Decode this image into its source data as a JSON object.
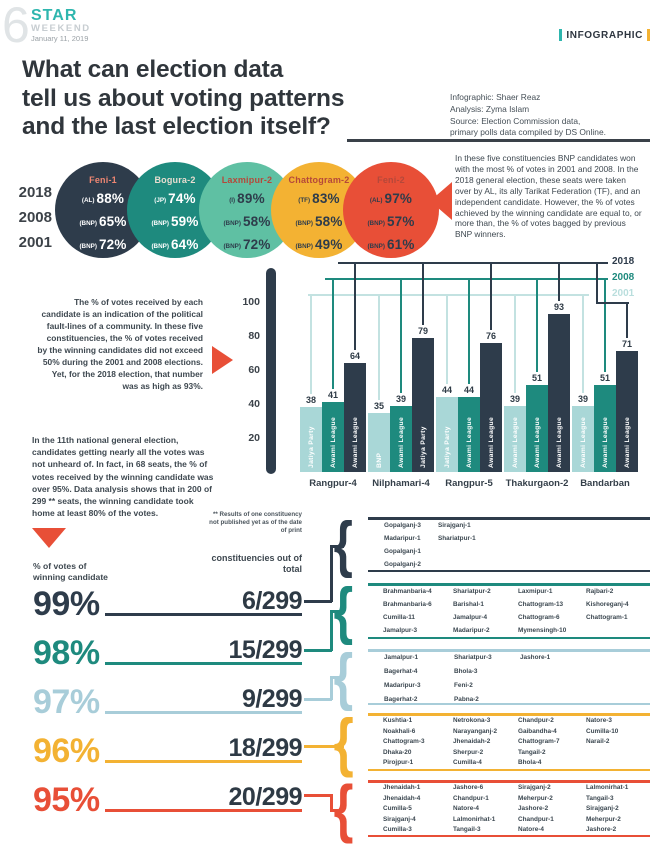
{
  "masthead": {
    "issue_number": "6",
    "brand": "STAR",
    "brand_sub": "WEEKEND",
    "date": "January 11, 2019",
    "section_tag": "INFOGRAPHIC"
  },
  "title": {
    "lines": [
      "What can election data",
      "tell us about voting patterns",
      "and the last election itself?"
    ]
  },
  "credits": {
    "lines": [
      "Infographic: Shaer Reaz",
      "Analysis: Zyma Islam",
      "Source: Election Commission data,",
      "primary polls data compiled by DS Online."
    ]
  },
  "colors": {
    "navy": "#2e3c4b",
    "teal": "#1e8a7e",
    "mint": "#5fc0a3",
    "amber": "#f3b233",
    "red": "#e84f37",
    "light_bar": "#a9d7d7",
    "light_line": "#c3e2e1",
    "light_blue": "#a8cdd9",
    "text_dark": "#3b454e"
  },
  "constituency_circles": {
    "year_labels": [
      "2018",
      "2008",
      "2001"
    ],
    "note": "In these five constituencies BNP candidates won with the most % of votes in 2001 and 2008. In the 2018 general election, these seats were taken over by AL, its ally Tarikat Federation (TF), and an independent candidate. However, the % of votes achieved by the winning candidate are equal to, or more than, the % of votes bagged by previous BNP winners."
  },
  "notes": {
    "fault_lines": "The % of votes received by each candidate is an indication of the political fault-lines of a community. In these five constituencies, the % of votes received by the winning candidates did not exceed 50% during the 2001 and 2008 elections. Yet, for the 2018 election, that number was as high as 93%.",
    "eleventh_election": "In the 11th national general election, candidates getting nearly all the votes was not unheard of. In fact, in 68 seats, the % of votes received by the winning candidate was over 95%.  Data analysis shows that in 200 of 299 ** seats, the winning candidate took home at least 80% of the votes."
  },
  "chart_data": [
    {
      "type": "table",
      "title": "Winning % of votes in five constituencies taken over from BNP",
      "columns": [
        "Feni-1",
        "Bogura-2",
        "Laxmipur-2",
        "Chattogram-2",
        "Feni-2"
      ],
      "column_colors": [
        "#2e3c4b",
        "#1e8a7e",
        "#5fc0a3",
        "#f3b233",
        "#e84f37"
      ],
      "text_colors": [
        "#ffffff",
        "#ffffff",
        "#2e3c4b",
        "#2e3c4b",
        "#2e3c4b"
      ],
      "title_colors": [
        "#ee8672",
        "#e9ddd0",
        "#b5483a",
        "#b5483a",
        "#b5483a"
      ],
      "rows": [
        {
          "year": "2018",
          "cells": [
            {
              "party": "(AL)",
              "value": "88%"
            },
            {
              "party": "(JP)",
              "value": "74%"
            },
            {
              "party": "(I)",
              "value": "89%"
            },
            {
              "party": "(TF)",
              "value": "83%"
            },
            {
              "party": "(AL)",
              "value": "97%"
            }
          ]
        },
        {
          "year": "2008",
          "cells": [
            {
              "party": "(BNP)",
              "value": "65%"
            },
            {
              "party": "(BNP)",
              "value": "59%"
            },
            {
              "party": "(BNP)",
              "value": "58%"
            },
            {
              "party": "(BNP)",
              "value": "58%"
            },
            {
              "party": "(BNP)",
              "value": "57%"
            }
          ]
        },
        {
          "year": "2001",
          "cells": [
            {
              "party": "(BNP)",
              "value": "72%"
            },
            {
              "party": "(BNP)",
              "value": "64%"
            },
            {
              "party": "(BNP)",
              "value": "72%"
            },
            {
              "party": "(BNP)",
              "value": "49%"
            },
            {
              "party": "(BNP)",
              "value": "61%"
            }
          ]
        }
      ]
    },
    {
      "type": "bar",
      "title": "% of votes received by winning candidate, by election year",
      "categories": [
        "Rangpur-4",
        "Nilphamari-4",
        "Rangpur-5",
        "Thakurgaon-2",
        "Bandarban"
      ],
      "series": [
        {
          "name": "2001",
          "color": "#a9d7d7",
          "line_color": "#c3e2e1",
          "values": [
            38,
            35,
            44,
            39,
            39
          ],
          "winning_party": [
            "Jatiya Party",
            "BNP",
            "Jatiya Party",
            "Awami League",
            "Awami League"
          ]
        },
        {
          "name": "2008",
          "color": "#1e8a7e",
          "line_color": "#1e8a7e",
          "values": [
            41,
            39,
            44,
            51,
            51
          ],
          "winning_party": [
            "Awami League",
            "Awami League",
            "Awami League",
            "Awami League",
            "Awami League"
          ]
        },
        {
          "name": "2018",
          "color": "#2e3c4b",
          "line_color": "#2e3c4b",
          "values": [
            64,
            79,
            76,
            93,
            71
          ],
          "winning_party": [
            "Awami League",
            "Jatiya Party",
            "Awami League",
            "Awami League",
            "Awami League"
          ]
        }
      ],
      "y_ticks": [
        100,
        80,
        60,
        40,
        20
      ],
      "ylim": [
        0,
        118
      ],
      "xlabel": "",
      "ylabel": "",
      "legend_position": "top-right",
      "legend_order": [
        "2018",
        "2008",
        "2001"
      ]
    }
  ],
  "breakdown": {
    "left_label": "% of votes of winning candidate",
    "right_label": "constituencies out of total",
    "footnote": "** Results of one constituency not published yet as of the date of print",
    "groups": [
      {
        "pct": "99%",
        "fraction": "6/299",
        "color": "#2e3c4b",
        "columns": [
          [
            "Gopalganj-3",
            "Madaripur-1",
            "Gopalganj-1",
            "Gopalganj-2"
          ],
          [
            "Sirajganj-1",
            "Shariatpur-1"
          ]
        ]
      },
      {
        "pct": "98%",
        "fraction": "15/299",
        "color": "#1e8a7e",
        "columns": [
          [
            "Brahmanbaria-4",
            "Brahmanbaria-6",
            "Cumilla-11",
            "Jamalpur-3"
          ],
          [
            "Shariatpur-2",
            "Barishal-1",
            "Jamalpur-4",
            "Madaripur-2"
          ],
          [
            "Laxmipur-1",
            "Chattogram-13",
            "Chattogram-6",
            "Mymensingh-10"
          ],
          [
            "Rajbari-2",
            "Kishoreganj-4",
            "Chattogram-1"
          ]
        ]
      },
      {
        "pct": "97%",
        "fraction": "9/299",
        "color": "#a8cdd9",
        "columns": [
          [
            "Jamalpur-1",
            "Bagerhat-4",
            "Madaripur-3",
            "Bagerhat-2"
          ],
          [
            "Shariatpur-3",
            "Bhola-3",
            "Feni-2",
            "Pabna-2"
          ],
          [
            "Jashore-1"
          ]
        ]
      },
      {
        "pct": "96%",
        "fraction": "18/299",
        "color": "#f3b233",
        "columns": [
          [
            "Kushtia-1",
            "Noakhali-6",
            "Chattogram-3",
            "Dhaka-20",
            "Pirojpur-1"
          ],
          [
            "Netrokona-3",
            "Narayanganj-2",
            "Jhenaidah-2",
            "Sherpur-2",
            "Cumilla-4"
          ],
          [
            "Chandpur-2",
            "Gaibandha-4",
            "Chattogram-7",
            "Tangail-2",
            "Bhola-4"
          ],
          [
            "Natore-3",
            "Cumilla-10",
            "Narail-2"
          ]
        ]
      },
      {
        "pct": "95%",
        "fraction": "20/299",
        "color": "#e84f37",
        "columns": [
          [
            "Jhenaidah-1",
            "Jhenaidah-4",
            "Cumilla-5",
            "Sirajganj-4",
            "Cumilla-3"
          ],
          [
            "Jashore-6",
            "Chandpur-1",
            "Natore-4",
            "Lalmonirhat-1",
            "Tangail-3"
          ],
          [
            "Sirajganj-2",
            "Meherpur-2",
            "Jashore-2",
            "Chandpur-1",
            "Natore-4"
          ],
          [
            "Lalmonirhat-1",
            "Tangail-3",
            "Sirajganj-2",
            "Meherpur-2",
            "Jashore-2"
          ]
        ]
      }
    ]
  }
}
